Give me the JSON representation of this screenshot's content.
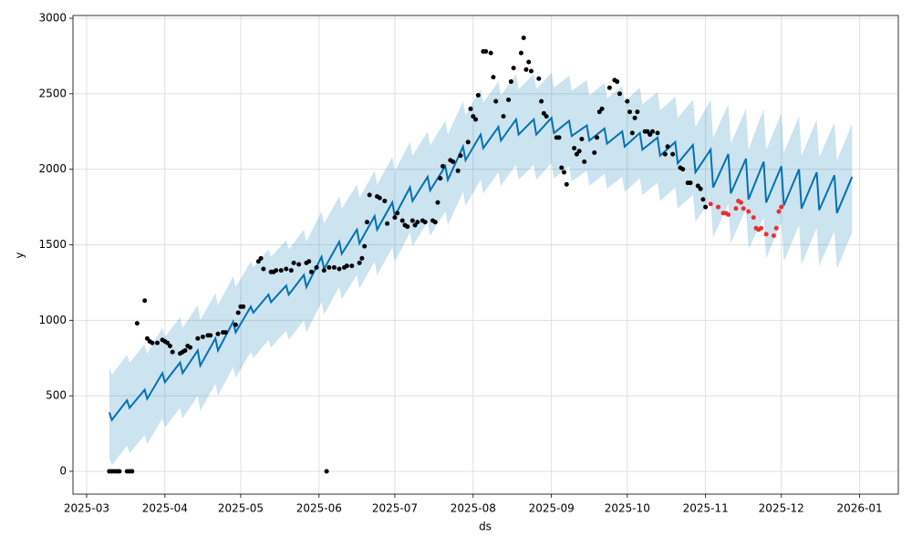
{
  "chart_data": {
    "type": "line",
    "x_label": "ds",
    "y_label": "y",
    "xlim": [
      -5.4,
      321.3
    ],
    "ylim": [
      -151,
      3018
    ],
    "xticks": [
      {
        "value": 0,
        "label": "2025-03"
      },
      {
        "value": 31,
        "label": "2025-04"
      },
      {
        "value": 61,
        "label": "2025-05"
      },
      {
        "value": 92,
        "label": "2025-06"
      },
      {
        "value": 122,
        "label": "2025-07"
      },
      {
        "value": 153,
        "label": "2025-08"
      },
      {
        "value": 184,
        "label": "2025-09"
      },
      {
        "value": 214,
        "label": "2025-10"
      },
      {
        "value": 245,
        "label": "2025-11"
      },
      {
        "value": 275,
        "label": "2025-12"
      },
      {
        "value": 306,
        "label": "2026-01"
      }
    ],
    "yticks": [
      0,
      500,
      1000,
      1500,
      2000,
      2500,
      3000
    ],
    "grid": true,
    "x": [
      9,
      10,
      16,
      17,
      23,
      24,
      30,
      31,
      37,
      38,
      44,
      45,
      51,
      52,
      58,
      59,
      65,
      66,
      72,
      73,
      79,
      80,
      86,
      87,
      93,
      94,
      100,
      101,
      107,
      108,
      114,
      115,
      121,
      122,
      128,
      129,
      135,
      136,
      142,
      143,
      149,
      150,
      156,
      157,
      163,
      164,
      170,
      171,
      177,
      178,
      184,
      185,
      191,
      192,
      198,
      199,
      205,
      206,
      212,
      213,
      219,
      220,
      226,
      227,
      233,
      234,
      240,
      241,
      247,
      248,
      254,
      255,
      261,
      262,
      268,
      269,
      275,
      276,
      282,
      283,
      289,
      290,
      296,
      297,
      303
    ],
    "forecast": {
      "color": "#0072b2",
      "values": [
        390,
        340,
        470,
        420,
        540,
        480,
        650,
        590,
        720,
        650,
        800,
        700,
        880,
        800,
        990,
        920,
        1090,
        1050,
        1170,
        1120,
        1230,
        1170,
        1300,
        1220,
        1420,
        1340,
        1520,
        1440,
        1600,
        1510,
        1690,
        1600,
        1780,
        1690,
        1880,
        1790,
        1950,
        1860,
        2020,
        1930,
        2150,
        2060,
        2230,
        2140,
        2280,
        2190,
        2330,
        2230,
        2330,
        2230,
        2340,
        2240,
        2320,
        2220,
        2290,
        2190,
        2270,
        2170,
        2250,
        2150,
        2240,
        2130,
        2210,
        2090,
        2180,
        2040,
        2160,
        1980,
        2130,
        1880,
        2100,
        1840,
        2070,
        1800,
        2050,
        1780,
        2020,
        1760,
        2000,
        1740,
        1980,
        1730,
        1960,
        1710,
        1950
      ]
    },
    "interval": {
      "color": "#0072b2",
      "upper": [
        690,
        640,
        770,
        720,
        840,
        780,
        950,
        890,
        1020,
        950,
        1100,
        1000,
        1180,
        1100,
        1290,
        1220,
        1390,
        1350,
        1470,
        1420,
        1530,
        1470,
        1600,
        1520,
        1720,
        1640,
        1820,
        1740,
        1900,
        1810,
        1990,
        1900,
        2080,
        1990,
        2180,
        2090,
        2250,
        2160,
        2320,
        2230,
        2450,
        2360,
        2530,
        2440,
        2580,
        2490,
        2630,
        2530,
        2630,
        2530,
        2640,
        2540,
        2620,
        2520,
        2590,
        2490,
        2570,
        2470,
        2550,
        2450,
        2540,
        2430,
        2510,
        2390,
        2480,
        2340,
        2460,
        2280,
        2460,
        2210,
        2430,
        2170,
        2400,
        2130,
        2400,
        2130,
        2370,
        2110,
        2350,
        2090,
        2330,
        2080,
        2310,
        2060,
        2300
      ],
      "lower": [
        90,
        40,
        170,
        120,
        240,
        180,
        350,
        290,
        420,
        350,
        500,
        400,
        580,
        500,
        690,
        620,
        790,
        750,
        870,
        820,
        930,
        870,
        1000,
        920,
        1120,
        1040,
        1220,
        1140,
        1300,
        1210,
        1390,
        1300,
        1480,
        1390,
        1580,
        1490,
        1650,
        1560,
        1720,
        1630,
        1850,
        1760,
        1930,
        1840,
        1980,
        1890,
        2030,
        1930,
        2030,
        1930,
        2040,
        1940,
        2020,
        1920,
        1990,
        1890,
        1970,
        1870,
        1950,
        1850,
        1940,
        1830,
        1910,
        1790,
        1880,
        1740,
        1830,
        1650,
        1800,
        1550,
        1770,
        1510,
        1740,
        1470,
        1680,
        1410,
        1650,
        1390,
        1630,
        1370,
        1610,
        1360,
        1590,
        1340,
        1580
      ]
    },
    "points": [
      {
        "color": "#000000",
        "x": [
          9,
          10,
          11,
          12,
          13,
          16,
          17,
          18,
          20,
          23,
          24,
          25,
          26,
          28,
          30,
          31,
          32,
          33,
          34,
          37,
          38,
          39,
          40,
          41,
          44,
          46,
          48,
          49,
          52,
          54,
          55,
          59,
          60,
          61,
          62,
          68,
          69,
          70,
          73,
          74,
          75,
          77,
          79,
          81,
          82,
          84,
          87,
          88,
          89,
          91,
          94,
          95,
          96,
          98,
          100,
          102,
          103,
          105,
          108,
          109,
          110,
          111,
          112,
          115,
          116,
          118,
          119,
          122,
          123,
          125,
          126,
          127,
          129,
          130,
          131,
          133,
          134,
          137,
          138,
          139,
          140,
          141,
          144,
          145,
          147,
          148,
          151,
          152,
          153,
          154,
          155,
          157,
          158,
          160,
          161,
          162,
          165,
          167,
          168,
          169,
          172,
          173,
          174,
          175,
          176,
          179,
          180,
          181,
          182,
          186,
          187,
          188,
          189,
          190,
          193,
          194,
          195,
          196,
          197,
          201,
          202,
          203,
          204,
          207,
          209,
          210,
          211,
          214,
          215,
          216,
          217,
          218,
          221,
          222,
          223,
          224,
          226,
          229,
          230,
          232,
          235,
          236,
          238,
          239,
          242,
          243,
          244,
          245
        ],
        "values": [
          0,
          0,
          0,
          0,
          0,
          0,
          0,
          0,
          980,
          1130,
          880,
          860,
          850,
          850,
          870,
          860,
          850,
          830,
          790,
          780,
          790,
          800,
          830,
          820,
          880,
          890,
          900,
          900,
          910,
          920,
          920,
          970,
          1050,
          1090,
          1090,
          1390,
          1410,
          1340,
          1320,
          1320,
          1330,
          1330,
          1340,
          1330,
          1380,
          1370,
          1380,
          1390,
          1320,
          1350,
          1330,
          0,
          1350,
          1350,
          1340,
          1350,
          1360,
          1360,
          1380,
          1410,
          1490,
          1650,
          1830,
          1820,
          1810,
          1790,
          1640,
          1680,
          1710,
          1660,
          1630,
          1620,
          1660,
          1630,
          1650,
          1660,
          1650,
          1660,
          1650,
          1780,
          1940,
          2020,
          2060,
          2050,
          1990,
          2090,
          2180,
          2400,
          2350,
          2330,
          2490,
          2780,
          2780,
          2770,
          2610,
          2450,
          2350,
          2460,
          2580,
          2670,
          2770,
          2870,
          2660,
          2710,
          2650,
          2600,
          2450,
          2370,
          2350,
          2210,
          2210,
          2010,
          1980,
          1900,
          2140,
          2100,
          2120,
          2200,
          2050,
          2110,
          2210,
          2380,
          2400,
          2540,
          2590,
          2580,
          2500,
          2450,
          2380,
          2240,
          2340,
          2380,
          2250,
          2250,
          2230,
          2250,
          2240,
          2100,
          2150,
          2100,
          2010,
          2000,
          1910,
          1910,
          1890,
          1870,
          1800,
          1750
        ]
      },
      {
        "color": "#e8302f",
        "x": [
          247,
          250,
          252,
          253,
          254,
          257,
          258,
          259,
          260,
          262,
          264,
          265,
          266,
          267,
          269,
          272,
          273,
          274,
          275
        ],
        "values": [
          1770,
          1750,
          1710,
          1710,
          1700,
          1740,
          1790,
          1780,
          1740,
          1720,
          1680,
          1610,
          1600,
          1610,
          1570,
          1560,
          1610,
          1720,
          1750
        ]
      }
    ]
  }
}
